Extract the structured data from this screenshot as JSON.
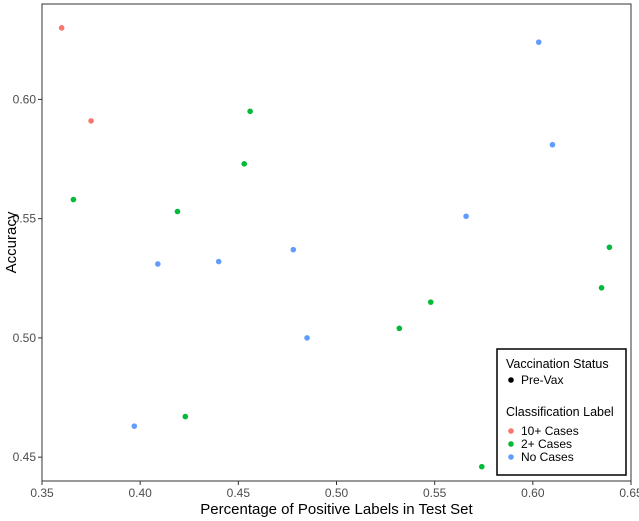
{
  "chart_data": {
    "type": "scatter",
    "title": "",
    "xlabel": "Percentage of Positive Labels in Test Set",
    "ylabel": "Accuracy",
    "xlim": [
      0.35,
      0.65
    ],
    "ylim": [
      0.44,
      0.64
    ],
    "x_ticks": [
      0.35,
      0.4,
      0.45,
      0.5,
      0.55,
      0.6,
      0.65
    ],
    "y_ticks": [
      0.45,
      0.5,
      0.55,
      0.6
    ],
    "x_tick_labels": [
      "0.35",
      "0.40",
      "0.45",
      "0.50",
      "0.55",
      "0.60",
      "0.65"
    ],
    "y_tick_labels": [
      "0.45",
      "0.50",
      "0.55",
      "0.60"
    ],
    "grid": false,
    "legend_position": "bottom-right",
    "legend": {
      "shape_title": "Vaccination Status",
      "shape_entries": [
        {
          "label": "Pre-Vax",
          "color": "#000000"
        }
      ],
      "color_title": "Classification Label"
    },
    "series": [
      {
        "name": "10+ Cases",
        "color": "#F8766D",
        "points": [
          {
            "x": 0.36,
            "y": 0.63
          },
          {
            "x": 0.375,
            "y": 0.591
          }
        ]
      },
      {
        "name": "2+ Cases",
        "color": "#00BA38",
        "points": [
          {
            "x": 0.366,
            "y": 0.558
          },
          {
            "x": 0.419,
            "y": 0.553
          },
          {
            "x": 0.423,
            "y": 0.467
          },
          {
            "x": 0.453,
            "y": 0.573
          },
          {
            "x": 0.456,
            "y": 0.595
          },
          {
            "x": 0.532,
            "y": 0.504
          },
          {
            "x": 0.548,
            "y": 0.515
          },
          {
            "x": 0.574,
            "y": 0.446
          },
          {
            "x": 0.635,
            "y": 0.521
          },
          {
            "x": 0.639,
            "y": 0.538
          }
        ]
      },
      {
        "name": "No Cases",
        "color": "#619CFF",
        "points": [
          {
            "x": 0.397,
            "y": 0.463
          },
          {
            "x": 0.409,
            "y": 0.531
          },
          {
            "x": 0.44,
            "y": 0.532
          },
          {
            "x": 0.478,
            "y": 0.537
          },
          {
            "x": 0.485,
            "y": 0.5
          },
          {
            "x": 0.566,
            "y": 0.551
          },
          {
            "x": 0.603,
            "y": 0.624
          },
          {
            "x": 0.61,
            "y": 0.581
          }
        ]
      }
    ]
  }
}
